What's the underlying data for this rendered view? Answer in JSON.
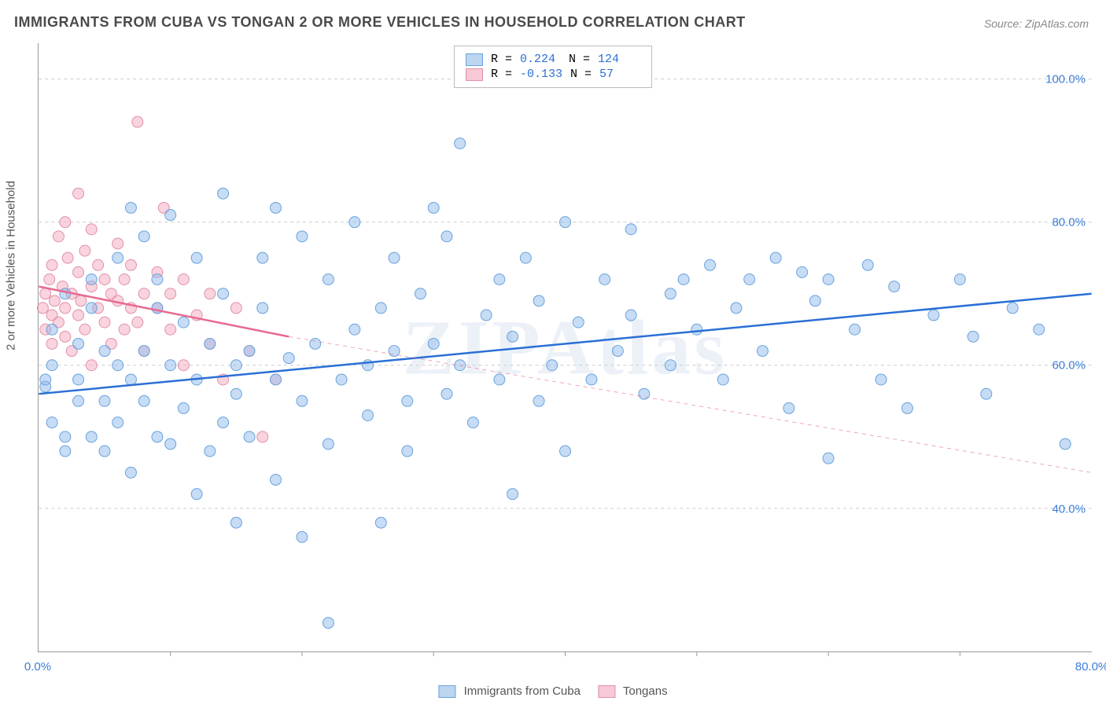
{
  "title": "IMMIGRANTS FROM CUBA VS TONGAN 2 OR MORE VEHICLES IN HOUSEHOLD CORRELATION CHART",
  "source": "Source: ZipAtlas.com",
  "watermark": "ZIPAtlas",
  "ylabel": "2 or more Vehicles in Household",
  "chart": {
    "type": "scatter",
    "xlim": [
      0,
      80
    ],
    "ylim": [
      20,
      105
    ],
    "xticks": [
      0,
      80
    ],
    "xtick_labels": [
      "0.0%",
      "80.0%"
    ],
    "xtick_minor": [
      10,
      20,
      30,
      40,
      50,
      60,
      70
    ],
    "yticks": [
      40,
      60,
      80,
      100
    ],
    "ytick_labels": [
      "40.0%",
      "60.0%",
      "80.0%",
      "100.0%"
    ],
    "background_color": "#ffffff",
    "grid_color": "#cccccc",
    "series": [
      {
        "name": "Immigrants from Cuba",
        "color_fill": "rgba(144,186,236,0.5)",
        "color_stroke": "#6aa3dd",
        "line_color": "#2a6fd6",
        "line_width": 2.5,
        "marker_r": 7,
        "R": "0.224",
        "N": "124",
        "trend_solid": {
          "x1": 0,
          "y1": 56,
          "x2": 80,
          "y2": 70
        },
        "points": [
          [
            0.5,
            57
          ],
          [
            0.5,
            58
          ],
          [
            1,
            52
          ],
          [
            1,
            65
          ],
          [
            1,
            60
          ],
          [
            2,
            50
          ],
          [
            2,
            48
          ],
          [
            2,
            70
          ],
          [
            3,
            55
          ],
          [
            3,
            58
          ],
          [
            3,
            63
          ],
          [
            4,
            50
          ],
          [
            4,
            72
          ],
          [
            4,
            68
          ],
          [
            5,
            62
          ],
          [
            5,
            55
          ],
          [
            5,
            48
          ],
          [
            6,
            52
          ],
          [
            6,
            60
          ],
          [
            6,
            75
          ],
          [
            7,
            82
          ],
          [
            7,
            58
          ],
          [
            7,
            45
          ],
          [
            8,
            78
          ],
          [
            8,
            62
          ],
          [
            8,
            55
          ],
          [
            9,
            50
          ],
          [
            9,
            68
          ],
          [
            9,
            72
          ],
          [
            10,
            60
          ],
          [
            10,
            49
          ],
          [
            10,
            81
          ],
          [
            11,
            66
          ],
          [
            11,
            54
          ],
          [
            12,
            42
          ],
          [
            12,
            75
          ],
          [
            12,
            58
          ],
          [
            13,
            63
          ],
          [
            13,
            48
          ],
          [
            14,
            70
          ],
          [
            14,
            84
          ],
          [
            14,
            52
          ],
          [
            15,
            60
          ],
          [
            15,
            38
          ],
          [
            15,
            56
          ],
          [
            16,
            62
          ],
          [
            16,
            50
          ],
          [
            17,
            75
          ],
          [
            17,
            68
          ],
          [
            18,
            44
          ],
          [
            18,
            58
          ],
          [
            18,
            82
          ],
          [
            19,
            61
          ],
          [
            20,
            55
          ],
          [
            20,
            78
          ],
          [
            20,
            36
          ],
          [
            21,
            63
          ],
          [
            22,
            49
          ],
          [
            22,
            72
          ],
          [
            22,
            24
          ],
          [
            23,
            58
          ],
          [
            24,
            65
          ],
          [
            24,
            80
          ],
          [
            25,
            53
          ],
          [
            25,
            60
          ],
          [
            26,
            38
          ],
          [
            26,
            68
          ],
          [
            27,
            75
          ],
          [
            27,
            62
          ],
          [
            28,
            55
          ],
          [
            28,
            48
          ],
          [
            29,
            70
          ],
          [
            30,
            63
          ],
          [
            30,
            82
          ],
          [
            31,
            78
          ],
          [
            31,
            56
          ],
          [
            32,
            91
          ],
          [
            32,
            60
          ],
          [
            33,
            52
          ],
          [
            34,
            67
          ],
          [
            35,
            72
          ],
          [
            35,
            58
          ],
          [
            36,
            42
          ],
          [
            36,
            64
          ],
          [
            37,
            75
          ],
          [
            38,
            55
          ],
          [
            38,
            69
          ],
          [
            39,
            60
          ],
          [
            40,
            48
          ],
          [
            40,
            80
          ],
          [
            41,
            66
          ],
          [
            42,
            58
          ],
          [
            43,
            72
          ],
          [
            44,
            62
          ],
          [
            45,
            79
          ],
          [
            45,
            67
          ],
          [
            46,
            56
          ],
          [
            48,
            70
          ],
          [
            48,
            60
          ],
          [
            49,
            72
          ],
          [
            50,
            65
          ],
          [
            51,
            74
          ],
          [
            52,
            58
          ],
          [
            53,
            68
          ],
          [
            54,
            72
          ],
          [
            55,
            62
          ],
          [
            56,
            75
          ],
          [
            57,
            54
          ],
          [
            58,
            73
          ],
          [
            59,
            69
          ],
          [
            60,
            47
          ],
          [
            60,
            72
          ],
          [
            62,
            65
          ],
          [
            63,
            74
          ],
          [
            64,
            58
          ],
          [
            65,
            71
          ],
          [
            66,
            54
          ],
          [
            68,
            67
          ],
          [
            70,
            72
          ],
          [
            71,
            64
          ],
          [
            72,
            56
          ],
          [
            74,
            68
          ],
          [
            76,
            65
          ],
          [
            78,
            49
          ]
        ]
      },
      {
        "name": "Tongans",
        "color_fill": "rgba(244,170,190,0.5)",
        "color_stroke": "#e290a8",
        "line_color": "#e86a91",
        "line_width": 2.5,
        "marker_r": 7,
        "R": "-0.133",
        "N": "57",
        "trend_solid": {
          "x1": 0,
          "y1": 71,
          "x2": 19,
          "y2": 64
        },
        "trend_dashed": {
          "x1": 19,
          "y1": 64,
          "x2": 80,
          "y2": 45
        },
        "points": [
          [
            0.3,
            68
          ],
          [
            0.5,
            70
          ],
          [
            0.5,
            65
          ],
          [
            0.8,
            72
          ],
          [
            1,
            67
          ],
          [
            1,
            63
          ],
          [
            1,
            74
          ],
          [
            1.2,
            69
          ],
          [
            1.5,
            78
          ],
          [
            1.5,
            66
          ],
          [
            1.8,
            71
          ],
          [
            2,
            80
          ],
          [
            2,
            68
          ],
          [
            2,
            64
          ],
          [
            2.2,
            75
          ],
          [
            2.5,
            70
          ],
          [
            2.5,
            62
          ],
          [
            3,
            84
          ],
          [
            3,
            73
          ],
          [
            3,
            67
          ],
          [
            3.2,
            69
          ],
          [
            3.5,
            76
          ],
          [
            3.5,
            65
          ],
          [
            4,
            71
          ],
          [
            4,
            60
          ],
          [
            4,
            79
          ],
          [
            4.5,
            74
          ],
          [
            4.5,
            68
          ],
          [
            5,
            72
          ],
          [
            5,
            66
          ],
          [
            5.5,
            63
          ],
          [
            5.5,
            70
          ],
          [
            6,
            77
          ],
          [
            6,
            69
          ],
          [
            6.5,
            65
          ],
          [
            6.5,
            72
          ],
          [
            7,
            68
          ],
          [
            7,
            74
          ],
          [
            7.5,
            94
          ],
          [
            7.5,
            66
          ],
          [
            8,
            70
          ],
          [
            8,
            62
          ],
          [
            9,
            73
          ],
          [
            9,
            68
          ],
          [
            9.5,
            82
          ],
          [
            10,
            65
          ],
          [
            10,
            70
          ],
          [
            11,
            60
          ],
          [
            11,
            72
          ],
          [
            12,
            67
          ],
          [
            13,
            63
          ],
          [
            13,
            70
          ],
          [
            14,
            58
          ],
          [
            15,
            68
          ],
          [
            16,
            62
          ],
          [
            17,
            50
          ],
          [
            18,
            58
          ]
        ]
      }
    ]
  },
  "legend": {
    "series1_swatch_fill": "#bcd5f0",
    "series1_swatch_stroke": "#6aa3dd",
    "series2_swatch_fill": "#f7c9d6",
    "series2_swatch_stroke": "#e290a8"
  }
}
